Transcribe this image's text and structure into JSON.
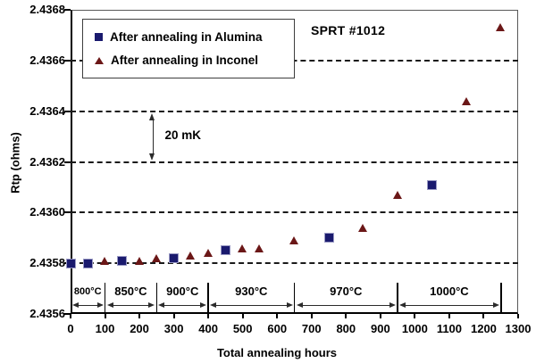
{
  "annotations": {
    "sprt_label": "SPRT #1012",
    "delta_label": "20 mK"
  },
  "chart_data": {
    "type": "scatter",
    "title": "",
    "xlabel": "Total annealing hours",
    "ylabel": "Rtp (ohms)",
    "xlim": [
      0,
      1300
    ],
    "ylim": [
      2.4356,
      2.4368
    ],
    "x_ticks": [
      0,
      100,
      200,
      300,
      400,
      500,
      600,
      700,
      800,
      900,
      1000,
      1100,
      1200,
      1300
    ],
    "y_ticks": [
      2.4356,
      2.4358,
      2.436,
      2.4362,
      2.4364,
      2.4366,
      2.4368
    ],
    "y_tick_labels": [
      "2.4356",
      "2.4358",
      "2.4360",
      "2.4362",
      "2.4364",
      "2.4366",
      "2.4368"
    ],
    "grid": "horizontal-dashed",
    "legend_position": "top-left-inside",
    "series": [
      {
        "name": "After annealing in Alumina",
        "marker": "square",
        "color": "#1a1a6e",
        "points": [
          [
            0,
            2.4358
          ],
          [
            50,
            2.4358
          ],
          [
            150,
            2.43581
          ],
          [
            300,
            2.43582
          ],
          [
            450,
            2.43585
          ],
          [
            750,
            2.4359
          ],
          [
            1050,
            2.43611
          ]
        ]
      },
      {
        "name": "After annealing in Inconel",
        "marker": "triangle",
        "color": "#6b1717",
        "points": [
          [
            100,
            2.43581
          ],
          [
            200,
            2.43581
          ],
          [
            250,
            2.43582
          ],
          [
            350,
            2.43583
          ],
          [
            400,
            2.43584
          ],
          [
            500,
            2.43586
          ],
          [
            550,
            2.43586
          ],
          [
            650,
            2.43589
          ],
          [
            850,
            2.43594
          ],
          [
            950,
            2.43607
          ],
          [
            1150,
            2.43644
          ],
          [
            1250,
            2.43673
          ]
        ]
      }
    ],
    "annotations": [
      {
        "text": "SPRT #1012",
        "x": 700,
        "y": 2.43673
      },
      {
        "text": "20 mK",
        "type": "vertical-double-arrow",
        "x": 240,
        "y_from": 2.4362,
        "y_to": 2.4364
      }
    ],
    "temperature_regions": [
      {
        "label": "800°C",
        "from": 0,
        "to": 100
      },
      {
        "label": "850°C",
        "from": 100,
        "to": 250
      },
      {
        "label": "900°C",
        "from": 250,
        "to": 400
      },
      {
        "label": "930°C",
        "from": 400,
        "to": 650
      },
      {
        "label": "970°C",
        "from": 650,
        "to": 950
      },
      {
        "label": "1000°C",
        "from": 950,
        "to": 1250
      }
    ]
  }
}
